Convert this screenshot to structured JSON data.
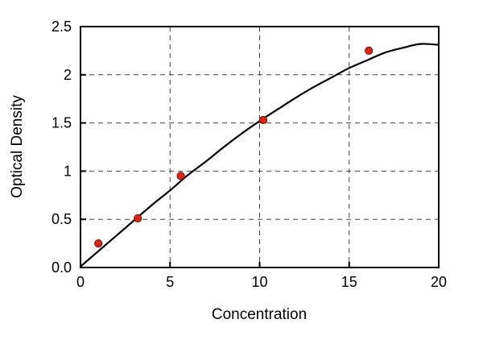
{
  "chart_data": {
    "type": "scatter",
    "title": "",
    "xlabel": "Concentration",
    "ylabel": "Optical Density",
    "xlim": [
      0,
      20
    ],
    "ylim": [
      0,
      2.5
    ],
    "xticks": [
      0,
      5,
      10,
      15,
      20
    ],
    "xtick_labels": [
      "0",
      "5",
      "10",
      "15",
      "20"
    ],
    "yticks": [
      0,
      0.5,
      1,
      1.5,
      2,
      2.5
    ],
    "ytick_labels": [
      "0.0",
      "0.5",
      "1",
      "1.5",
      "2",
      "2.5"
    ],
    "grid": "dashed interior gridlines at x=5,10,15 and y=0.5,1,1.5,2",
    "legend": "none",
    "series": [
      {
        "name": "measured-points",
        "style": "scatter",
        "color": "#d62718",
        "edge_color": "#8a120c",
        "points": [
          [
            1.0,
            0.25
          ],
          [
            3.2,
            0.51
          ],
          [
            5.6,
            0.95
          ],
          [
            10.2,
            1.53
          ],
          [
            16.1,
            2.25
          ]
        ]
      },
      {
        "name": "fit-curve",
        "style": "line",
        "color": "#000000",
        "points": [
          [
            0,
            0.01
          ],
          [
            1,
            0.17
          ],
          [
            2,
            0.33
          ],
          [
            3,
            0.49
          ],
          [
            4,
            0.65
          ],
          [
            5,
            0.8
          ],
          [
            6,
            0.96
          ],
          [
            7,
            1.1
          ],
          [
            8,
            1.25
          ],
          [
            9,
            1.39
          ],
          [
            10,
            1.52
          ],
          [
            11,
            1.64
          ],
          [
            12,
            1.76
          ],
          [
            13,
            1.87
          ],
          [
            14,
            1.97
          ],
          [
            15,
            2.07
          ],
          [
            16,
            2.15
          ],
          [
            17,
            2.23
          ],
          [
            18,
            2.28
          ],
          [
            19,
            2.32
          ],
          [
            20,
            2.31
          ]
        ]
      }
    ],
    "frame_color": "#000000",
    "grid_color": "#444444",
    "background": "#ffffff"
  }
}
